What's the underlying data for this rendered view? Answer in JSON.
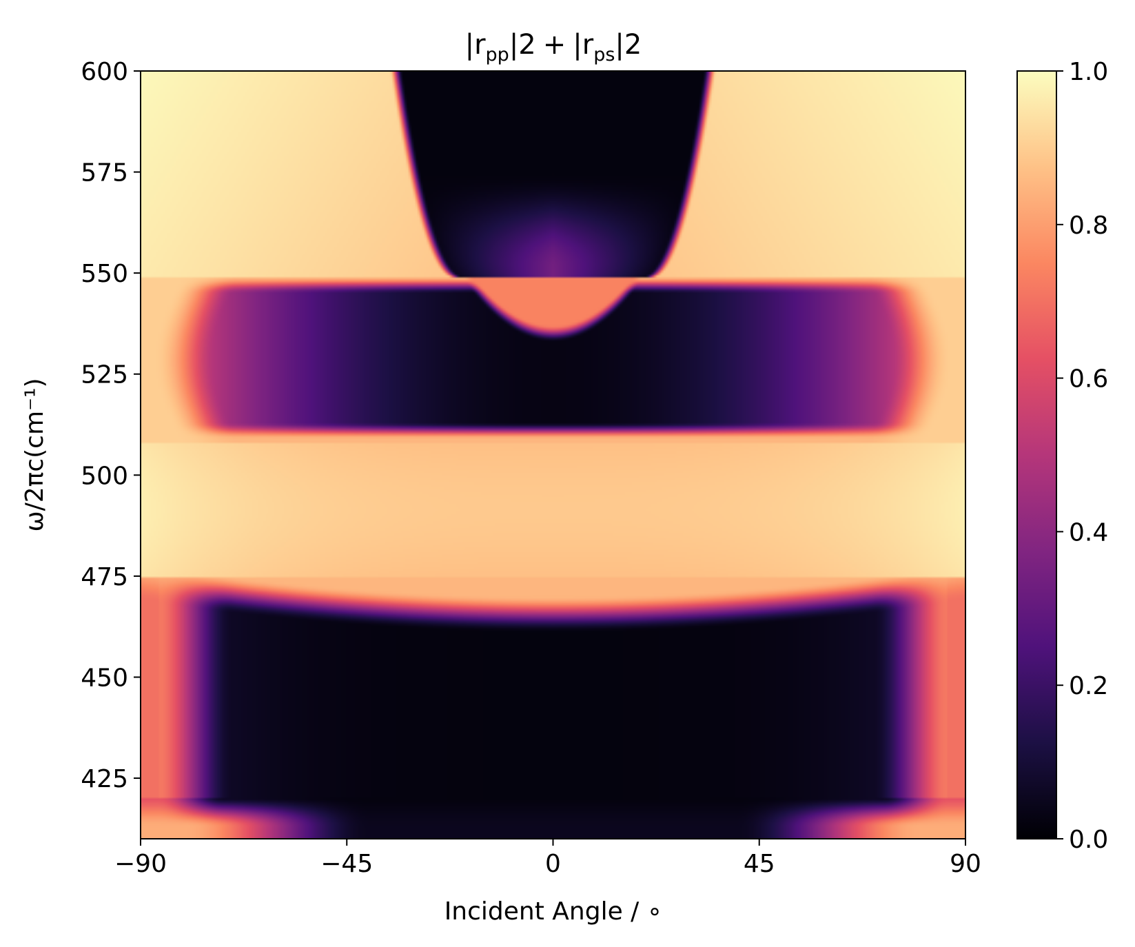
{
  "chart_data": {
    "type": "heatmap",
    "title": "|r_pp|^2 + |r_ps|^2",
    "title_parts": {
      "bar1": "|r",
      "sub1": "pp",
      "sup1": "|2",
      "plus": "+",
      "bar2": "|r",
      "sub2": "ps",
      "sup2": "|2"
    },
    "xlabel": "Incident Angle / ∘",
    "ylabel": "ω/2πc(cm⁻¹)",
    "xlim": [
      -90,
      90
    ],
    "ylim": [
      410,
      600
    ],
    "xticks": [
      -90,
      -45,
      0,
      45,
      90
    ],
    "xtick_labels": [
      "−90",
      "−45",
      "0",
      "45",
      "90"
    ],
    "yticks": [
      425,
      450,
      475,
      500,
      525,
      550,
      575,
      600
    ],
    "ytick_labels": [
      "425",
      "450",
      "475",
      "500",
      "525",
      "550",
      "575",
      "600"
    ],
    "colorbar": {
      "colormap": "magma",
      "range": [
        0.0,
        1.0
      ],
      "ticks": [
        0.0,
        0.2,
        0.4,
        0.6,
        0.8,
        1.0
      ],
      "tick_labels": [
        "0.0",
        "0.2",
        "0.4",
        "0.6",
        "0.8",
        "1.0"
      ]
    },
    "features": [
      {
        "region": "y 550-600, |x| < ~34 (narrowing to ~20 at y=550)",
        "value": 0.0
      },
      {
        "region": "y 550-600, outside dark funnel",
        "value": 0.95
      },
      {
        "region": "y 535-550, |x| < ~20 (central lens)",
        "value": 0.75
      },
      {
        "region": "y 510-548, band center",
        "value": 0.05
      },
      {
        "region": "y 510-548, band edges |x| ~ 75",
        "value": 0.65
      },
      {
        "region": "y 475-508, bright band",
        "value": 0.88
      },
      {
        "region": "y 420-472, center",
        "value": 0.0
      },
      {
        "region": "y 420-472, |x| ~ 85",
        "value": 0.6
      },
      {
        "region": "y 410-420, edges",
        "value": 0.8
      }
    ]
  }
}
